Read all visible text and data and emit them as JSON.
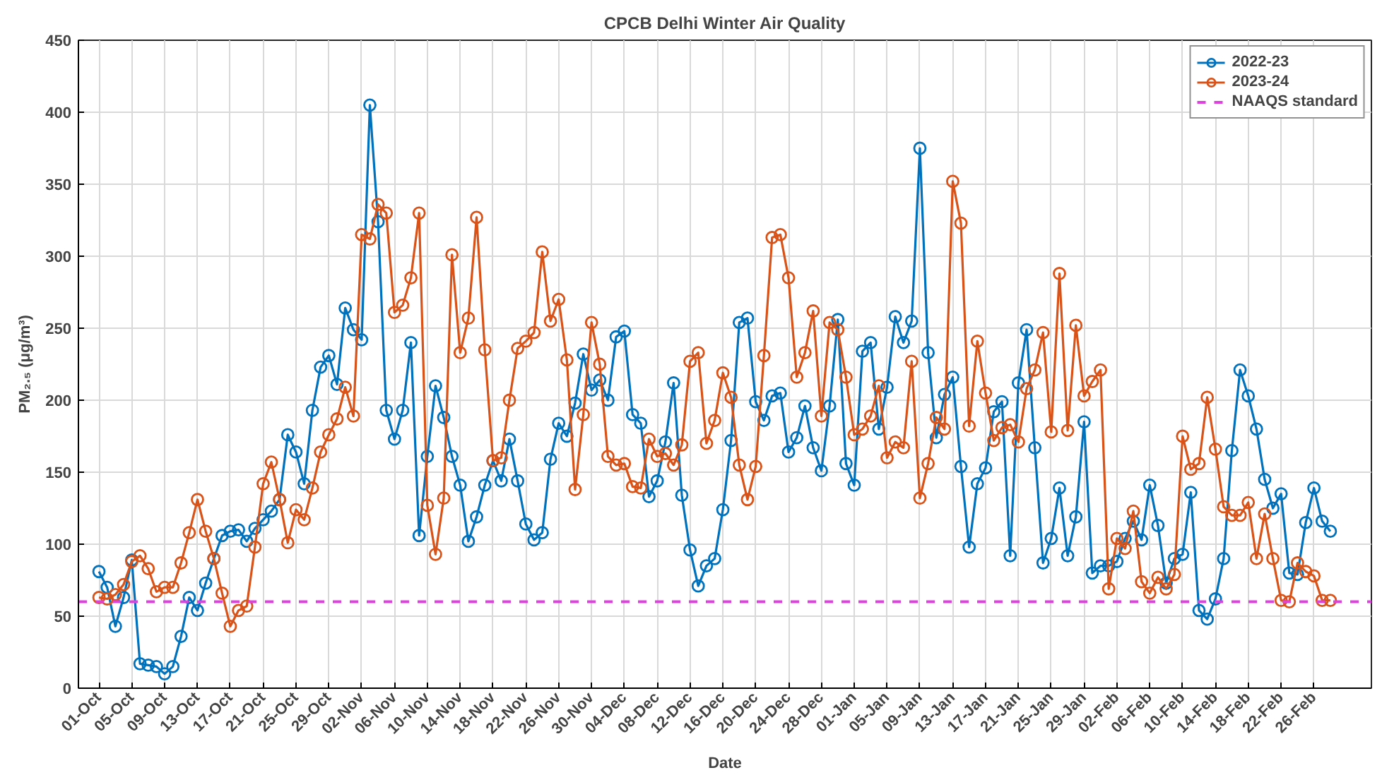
{
  "chart_data": {
    "type": "line",
    "title": "CPCB Delhi Winter Air Quality",
    "xlabel": "Date",
    "ylabel": "PM₂.₅ (μg/m³)",
    "categories": [
      "01-Oct",
      null,
      null,
      null,
      "05-Oct",
      null,
      null,
      null,
      "09-Oct",
      null,
      null,
      null,
      "13-Oct",
      null,
      null,
      null,
      "17-Oct",
      null,
      null,
      null,
      "21-Oct",
      null,
      null,
      null,
      "25-Oct",
      null,
      null,
      null,
      "29-Oct",
      null,
      null,
      null,
      "02-Nov",
      null,
      null,
      null,
      "06-Nov",
      null,
      null,
      null,
      "10-Nov",
      null,
      null,
      null,
      "14-Nov",
      null,
      null,
      null,
      "18-Nov",
      null,
      null,
      null,
      "22-Nov",
      null,
      null,
      null,
      "26-Nov",
      null,
      null,
      null,
      "30-Nov",
      null,
      null,
      null,
      "04-Dec",
      null,
      null,
      null,
      "08-Dec",
      null,
      null,
      null,
      "12-Dec",
      null,
      null,
      null,
      "16-Dec",
      null,
      null,
      null,
      "20-Dec",
      null,
      null,
      null,
      "24-Dec",
      null,
      null,
      null,
      "28-Dec",
      null,
      null,
      null,
      "01-Jan",
      null,
      null,
      null,
      "05-Jan",
      null,
      null,
      null,
      "09-Jan",
      null,
      null,
      null,
      "13-Jan",
      null,
      null,
      null,
      "17-Jan",
      null,
      null,
      null,
      "21-Jan",
      null,
      null,
      null,
      "25-Jan",
      null,
      null,
      null,
      "29-Jan",
      null,
      null,
      null,
      "02-Feb",
      null,
      null,
      null,
      "06-Feb",
      null,
      null,
      null,
      "10-Feb",
      null,
      null,
      null,
      "14-Feb",
      null,
      null,
      null,
      "18-Feb",
      null,
      null,
      null,
      "22-Feb",
      null,
      null,
      null,
      "26-Feb",
      null,
      null
    ],
    "series": [
      {
        "name": "2022-23",
        "color": "#0072bd",
        "values": [
          81,
          70,
          43,
          63,
          89,
          17,
          16,
          15,
          10,
          15,
          36,
          63,
          54,
          73,
          90,
          106,
          109,
          110,
          102,
          111,
          117,
          123,
          131,
          176,
          164,
          142,
          193,
          223,
          231,
          211,
          264,
          249,
          242,
          405,
          324,
          193,
          173,
          193,
          240,
          106,
          161,
          210,
          188,
          161,
          141,
          102,
          119,
          141,
          158,
          144,
          173,
          144,
          114,
          103,
          108,
          159,
          184,
          175,
          198,
          232,
          207,
          214,
          200,
          244,
          248,
          190,
          184,
          133,
          144,
          171,
          212,
          134,
          96,
          71,
          85,
          90,
          124,
          172,
          254,
          257,
          199,
          186,
          203,
          205,
          164,
          174,
          196,
          167,
          151,
          196,
          256,
          156,
          141,
          234,
          240,
          180,
          209,
          258,
          240,
          255,
          375,
          233,
          174,
          204,
          216,
          154,
          98,
          142,
          153,
          192,
          199,
          92,
          212,
          249,
          167,
          87,
          104,
          139,
          92,
          119,
          185,
          80,
          85,
          85,
          88,
          104,
          116,
          103,
          141,
          113,
          73,
          90,
          93,
          136,
          54,
          48,
          62,
          90,
          165,
          221,
          203,
          180,
          145,
          125,
          135,
          80,
          79,
          115,
          139,
          116,
          109
        ]
      },
      {
        "name": "2023-24",
        "color": "#d95319",
        "values": [
          63,
          62,
          65,
          72,
          88,
          92,
          83,
          67,
          70,
          70,
          87,
          108,
          131,
          109,
          90,
          66,
          43,
          54,
          57,
          98,
          142,
          157,
          131,
          101,
          124,
          117,
          139,
          164,
          176,
          187,
          209,
          189,
          315,
          312,
          336,
          330,
          261,
          266,
          285,
          330,
          127,
          93,
          132,
          301,
          233,
          257,
          327,
          235,
          158,
          160,
          200,
          236,
          241,
          247,
          303,
          255,
          270,
          228,
          138,
          190,
          254,
          225,
          161,
          155,
          156,
          140,
          139,
          173,
          161,
          163,
          155,
          169,
          227,
          233,
          170,
          186,
          219,
          202,
          155,
          131,
          154,
          231,
          313,
          315,
          285,
          216,
          233,
          262,
          189,
          254,
          249,
          216,
          176,
          180,
          189,
          210,
          160,
          171,
          167,
          227,
          132,
          156,
          188,
          180,
          352,
          323,
          182,
          241,
          205,
          172,
          181,
          183,
          171,
          208,
          221,
          247,
          178,
          288,
          179,
          252,
          203,
          213,
          221,
          69,
          104,
          97,
          123,
          74,
          66,
          77,
          69,
          79,
          175,
          152,
          156,
          202,
          166,
          126,
          120,
          120,
          129,
          90,
          121,
          90,
          61,
          60,
          87,
          81,
          78,
          61,
          61
        ]
      }
    ],
    "ref_lines": [
      {
        "axis": "y",
        "value": 60,
        "label": "NAAQS standard",
        "color": "#e040e0",
        "line_style": "dashed"
      }
    ],
    "ylim": [
      0,
      450
    ],
    "yticks": [
      0,
      50,
      100,
      150,
      200,
      250,
      300,
      350,
      400,
      450
    ],
    "grid": true,
    "legend": "top right",
    "marker": "circle",
    "line_style": "solid"
  }
}
